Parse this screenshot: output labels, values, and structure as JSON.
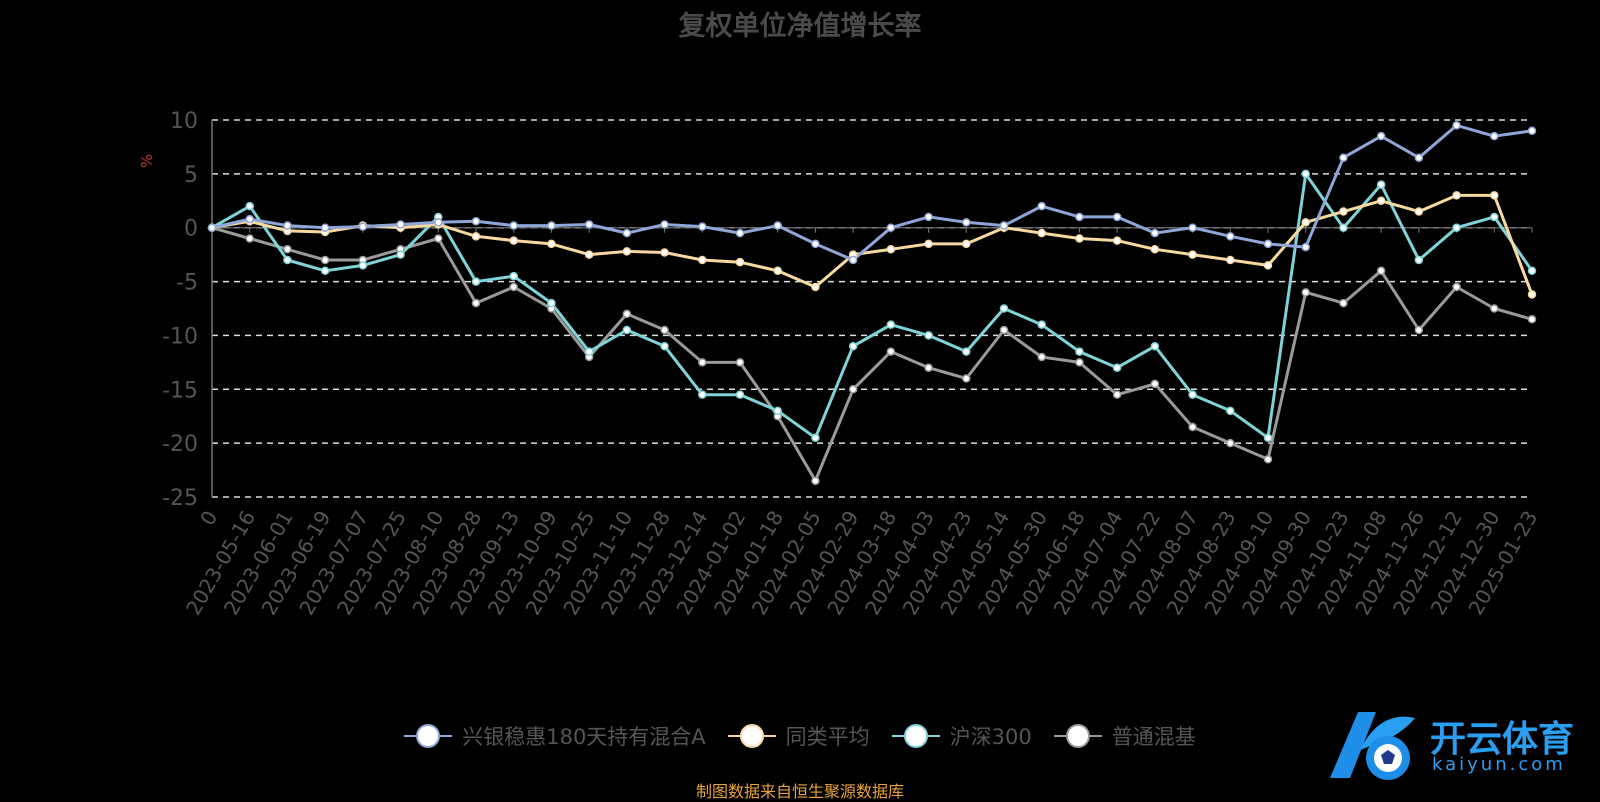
{
  "chart_data": {
    "type": "line",
    "title": "复权单位净值增长率",
    "ylabel": "%",
    "ylim": [
      -25,
      10
    ],
    "y_ticks": [
      10,
      5,
      0,
      -5,
      -10,
      -15,
      -20,
      -25
    ],
    "grid": true,
    "legend_position": "bottom",
    "x_tick_labels": [
      "0",
      "2023-05-16",
      "2023-06-01",
      "2023-06-19",
      "2023-07-07",
      "2023-07-25",
      "2023-08-10",
      "2023-08-28",
      "2023-09-13",
      "2023-10-09",
      "2023-10-25",
      "2023-11-10",
      "2023-11-28",
      "2023-12-14",
      "2024-01-02",
      "2024-01-18",
      "2024-02-05",
      "2024-02-29",
      "2024-03-18",
      "2024-04-03",
      "2024-04-23",
      "2024-05-14",
      "2024-05-30",
      "2024-06-18",
      "2024-07-04",
      "2024-07-22",
      "2024-08-07",
      "2024-08-23",
      "2024-09-10",
      "2024-09-30",
      "2024-10-23",
      "2024-11-08",
      "2024-11-26",
      "2024-12-12",
      "2024-12-30",
      "2025-01-23"
    ],
    "x": [
      0,
      2,
      4,
      6,
      8,
      10,
      12,
      14,
      16,
      18,
      20,
      22,
      24,
      26,
      28,
      30,
      32,
      34,
      36,
      38,
      40,
      42,
      44,
      46,
      48,
      50,
      52,
      54,
      56,
      58,
      60,
      62,
      64,
      66,
      68,
      70
    ],
    "series": [
      {
        "name": "兴银稳惠180天持有混合A",
        "color": "#8fa6d8",
        "values": [
          0,
          0.8,
          0.2,
          0.0,
          0.1,
          0.3,
          0.5,
          0.6,
          0.2,
          0.2,
          0.3,
          -0.5,
          0.3,
          0.1,
          -0.5,
          0.2,
          -1.5,
          -3.0,
          0.0,
          1.0,
          0.5,
          0.2,
          2.0,
          1.0,
          1.0,
          -0.5,
          0.0,
          -0.8,
          -1.5,
          -1.8,
          6.5,
          8.5,
          6.5,
          9.5,
          8.5,
          9.0
        ]
      },
      {
        "name": "同类平均",
        "color": "#f7d9a0",
        "values": [
          0,
          0.6,
          -0.3,
          -0.4,
          0.2,
          0.0,
          0.3,
          -0.8,
          -1.2,
          -1.5,
          -2.5,
          -2.2,
          -2.3,
          -3.0,
          -3.2,
          -4.0,
          -5.5,
          -2.5,
          -2.0,
          -1.5,
          -1.5,
          0.0,
          -0.5,
          -1.0,
          -1.2,
          -2.0,
          -2.5,
          -3.0,
          -3.5,
          0.5,
          1.5,
          2.5,
          1.5,
          3.0,
          3.0,
          -6.2
        ]
      },
      {
        "name": "沪深300",
        "color": "#7fd4d9",
        "values": [
          0,
          2.0,
          -3.0,
          -4.0,
          -3.5,
          -2.5,
          1.0,
          -5.0,
          -4.5,
          -7.0,
          -11.5,
          -9.5,
          -11.0,
          -15.5,
          -15.5,
          -17.0,
          -19.5,
          -11.0,
          -9.0,
          -10.0,
          -11.5,
          -7.5,
          -9.0,
          -11.5,
          -13.0,
          -11.0,
          -15.5,
          -17.0,
          -19.5,
          5.0,
          0.0,
          4.0,
          -3.0,
          0.0,
          1.0,
          -4.0
        ]
      },
      {
        "name": "普通混基",
        "color": "#9a9a9a",
        "values": [
          0,
          -1.0,
          -2.0,
          -3.0,
          -3.0,
          -2.0,
          -1.0,
          -7.0,
          -5.5,
          -7.5,
          -12.0,
          -8.0,
          -9.5,
          -12.5,
          -12.5,
          -17.5,
          -23.5,
          -15.0,
          -11.5,
          -13.0,
          -14.0,
          -9.5,
          -12.0,
          -12.5,
          -15.5,
          -14.5,
          -18.5,
          -20.0,
          -21.5,
          -6.0,
          -7.0,
          -4.0,
          -9.5,
          -5.5,
          -7.5,
          -8.5
        ]
      }
    ]
  },
  "source_note": "制图数据来自恒生聚源数据库",
  "logo": {
    "text": "开云体育",
    "sub": "kaiyun.com"
  }
}
